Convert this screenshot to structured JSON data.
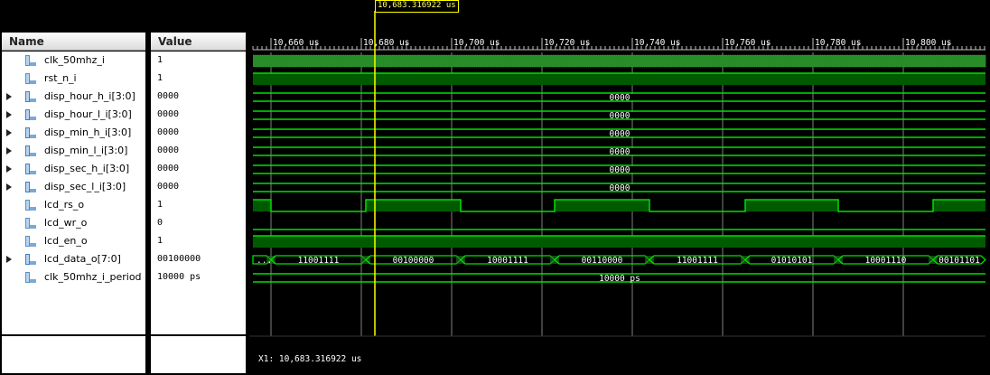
{
  "names_header": "Name",
  "values_header": "Value",
  "signals": [
    {
      "name": "clk_50mhz_i",
      "value": "1",
      "expandable": false,
      "bus": false
    },
    {
      "name": "rst_n_i",
      "value": "1",
      "expandable": false,
      "bus": false
    },
    {
      "name": "disp_hour_h_i[3:0]",
      "value": "0000",
      "expandable": true,
      "bus": true
    },
    {
      "name": "disp_hour_l_i[3:0]",
      "value": "0000",
      "expandable": true,
      "bus": true
    },
    {
      "name": "disp_min_h_i[3:0]",
      "value": "0000",
      "expandable": true,
      "bus": true
    },
    {
      "name": "disp_min_l_i[3:0]",
      "value": "0000",
      "expandable": true,
      "bus": true
    },
    {
      "name": "disp_sec_h_i[3:0]",
      "value": "0000",
      "expandable": true,
      "bus": true
    },
    {
      "name": "disp_sec_l_i[3:0]",
      "value": "0000",
      "expandable": true,
      "bus": true
    },
    {
      "name": "lcd_rs_o",
      "value": "1",
      "expandable": false,
      "bus": false
    },
    {
      "name": "lcd_wr_o",
      "value": "0",
      "expandable": false,
      "bus": false
    },
    {
      "name": "lcd_en_o",
      "value": "1",
      "expandable": false,
      "bus": false
    },
    {
      "name": "lcd_data_o[7:0]",
      "value": "00100000",
      "expandable": true,
      "bus": true
    },
    {
      "name": "clk_50mhz_i_period",
      "value": "10000 ps",
      "expandable": false,
      "bus": false
    }
  ],
  "time_ticks": [
    "10,660 us",
    "10,680 us",
    "10,700 us",
    "10,720 us",
    "10,740 us",
    "10,760 us",
    "10,780 us",
    "10,800 us"
  ],
  "cursor_label": "10,683.316922 us",
  "footer_label": "X1: 10,683.316922 us",
  "bus_labels": {
    "disp": "0000",
    "period": "10000 ps",
    "lcd_data": [
      "...",
      "11001111",
      "00100000",
      "10001111",
      "00110000",
      "11001111",
      "01010101",
      "10001110",
      "00101101"
    ]
  },
  "colors": {
    "wave": "#00e000",
    "fill": "#005a00",
    "cursor": "#ffff00",
    "grid": "#808080"
  }
}
